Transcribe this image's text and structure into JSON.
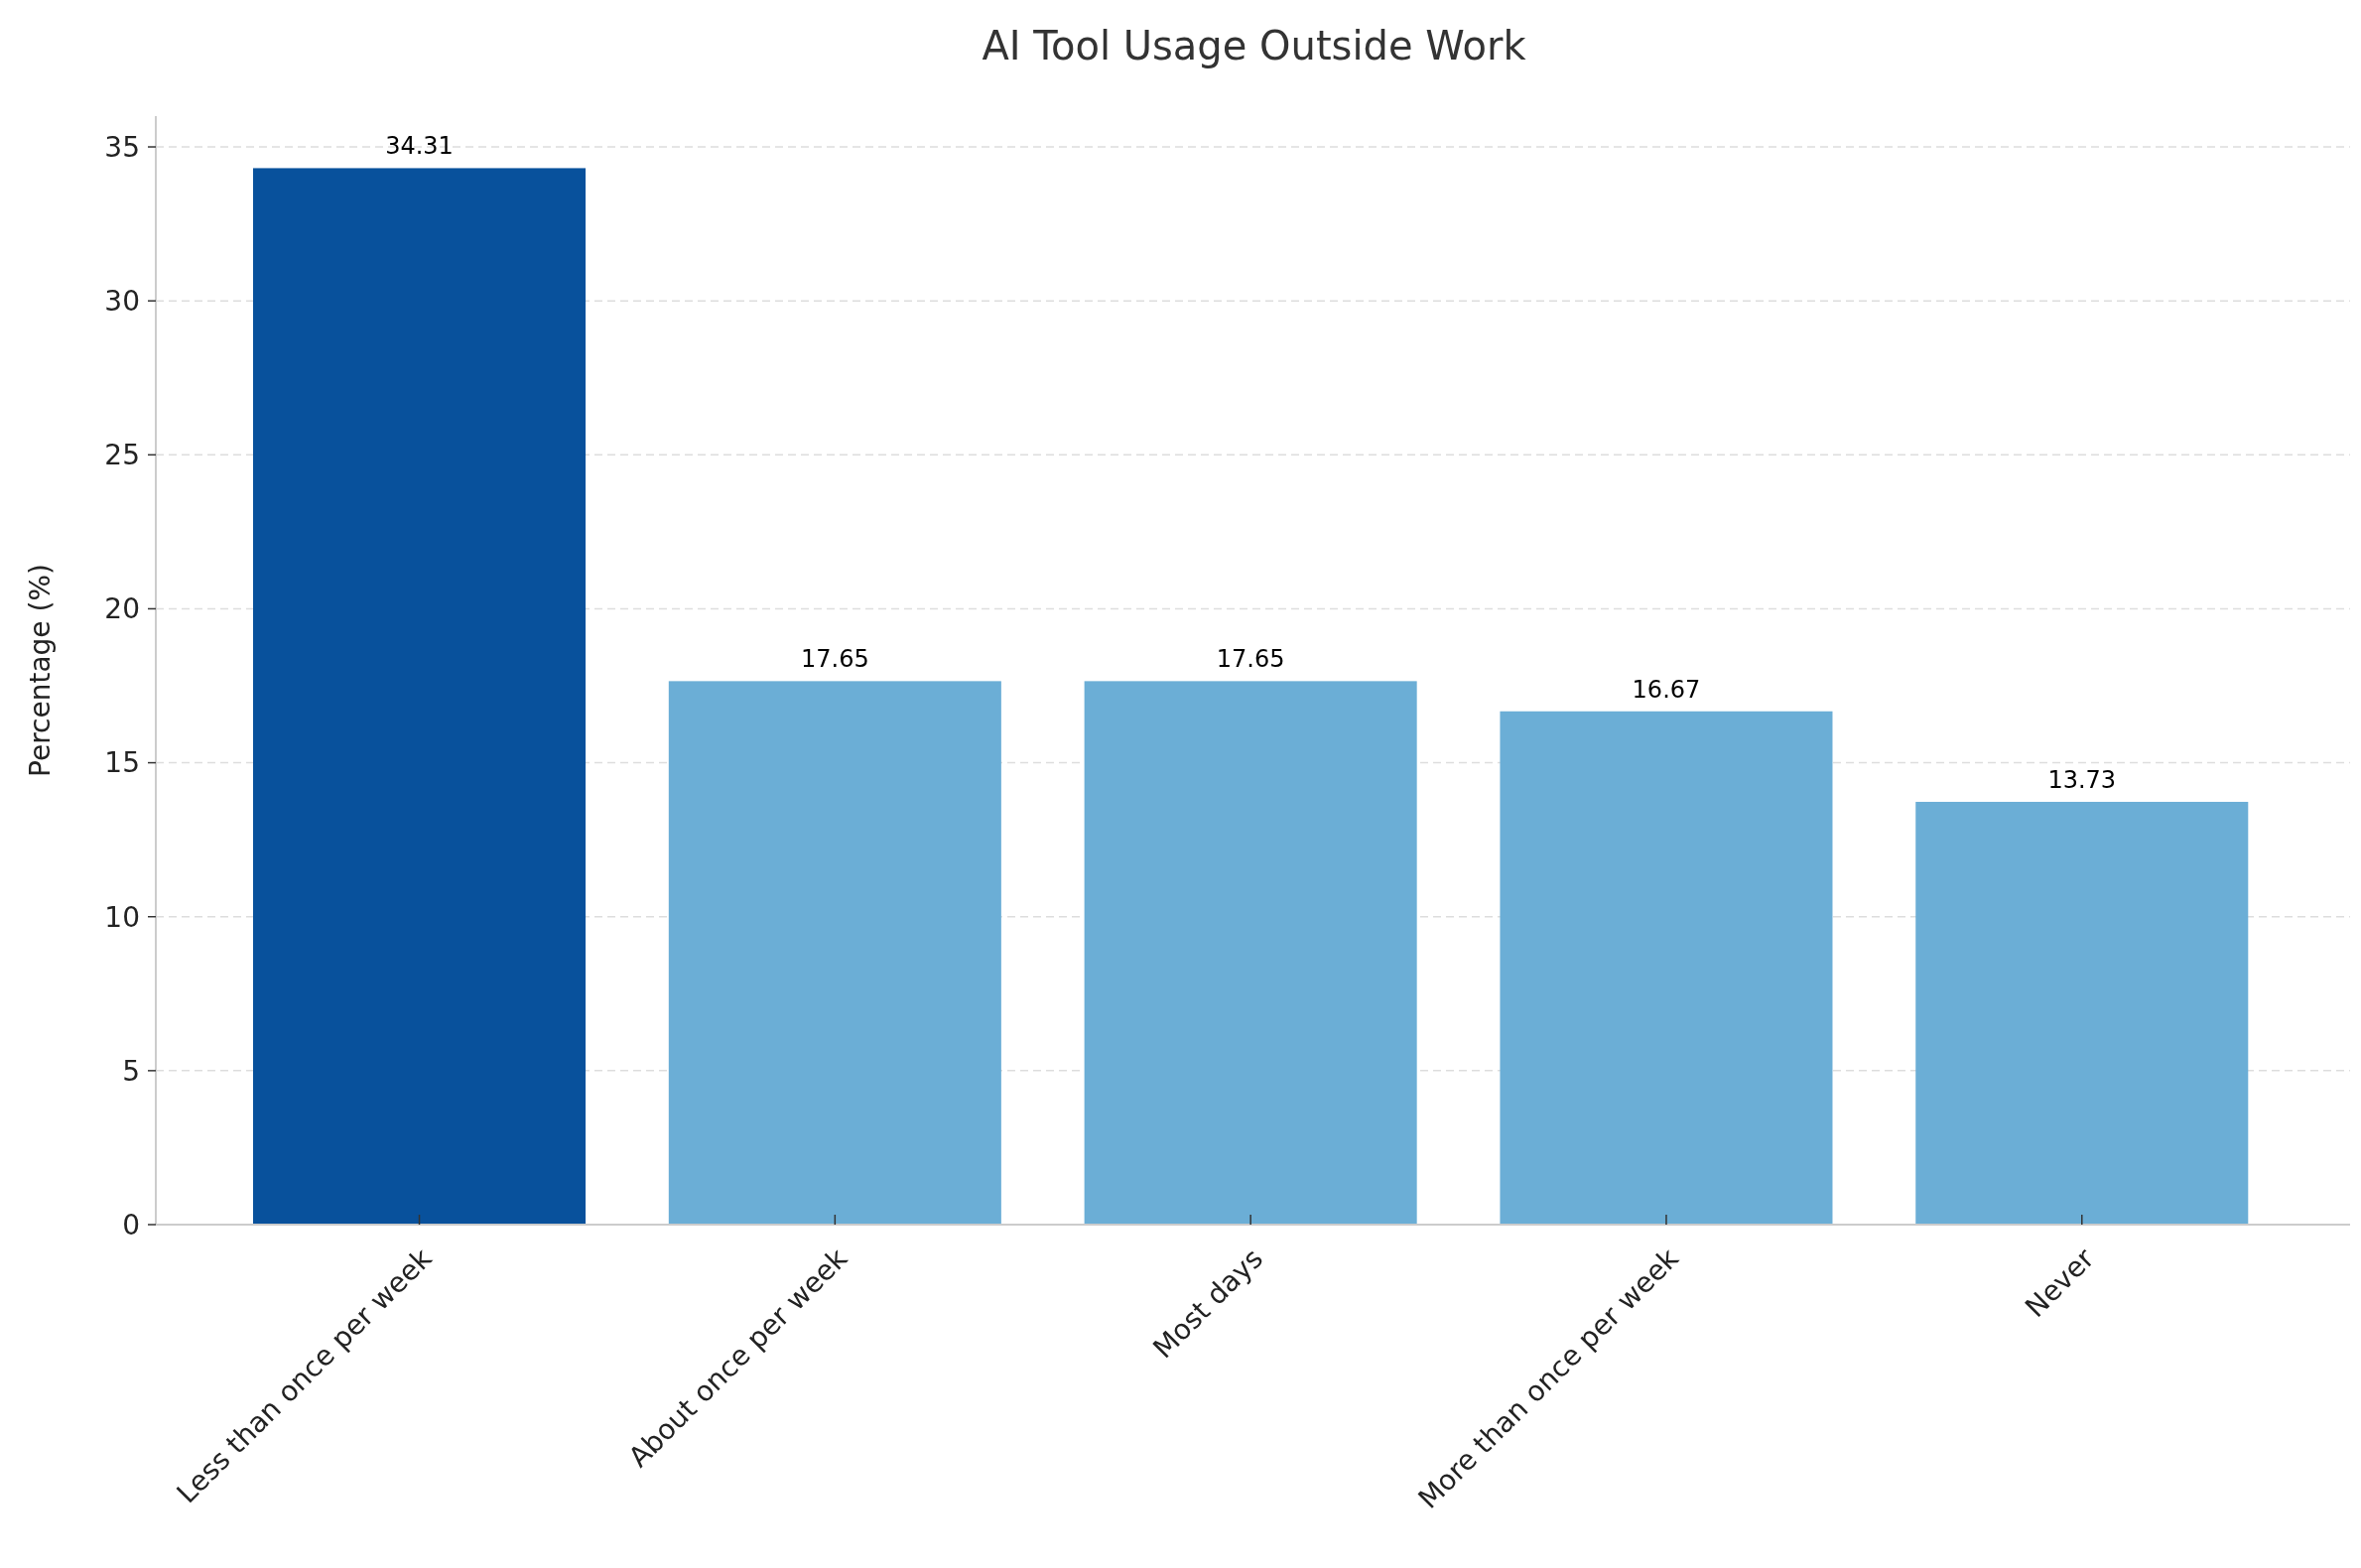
{
  "chart_data": {
    "type": "bar",
    "title": "AI Tool Usage Outside Work",
    "ylabel": "Percentage (%)",
    "categories": [
      "Less than once per week",
      "About once per week",
      "Most days",
      "More than once per week",
      "Never"
    ],
    "values": [
      34.31,
      17.65,
      17.65,
      16.67,
      13.73
    ],
    "colors": [
      "#08519c",
      "#6baed6",
      "#6baed6",
      "#6baed6",
      "#6baed6"
    ],
    "ylim": [
      0,
      36
    ],
    "yticks": [
      0,
      5,
      10,
      15,
      20,
      25,
      30,
      35
    ],
    "grid": "y",
    "data_labels": true
  }
}
